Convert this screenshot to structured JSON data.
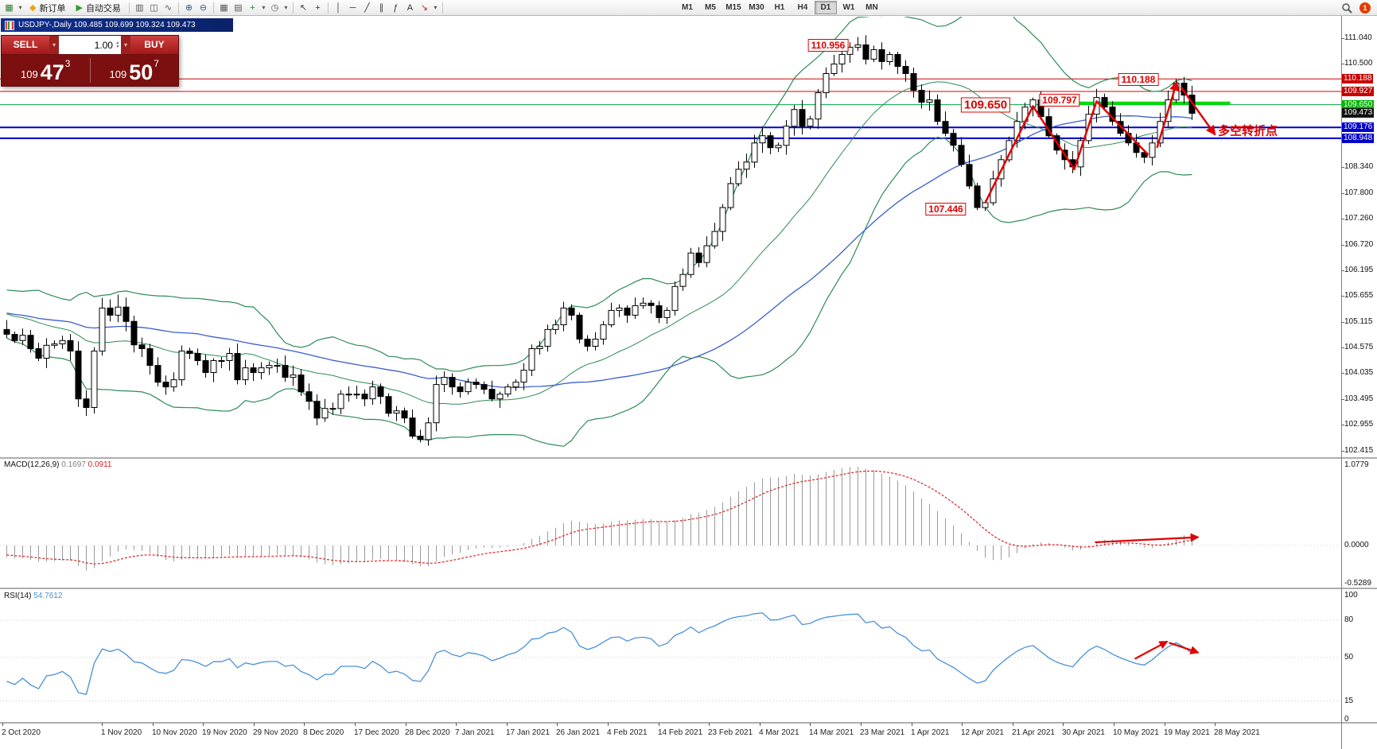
{
  "toolbar": {
    "items": [
      {
        "type": "icon",
        "name": "new-chart",
        "glyph": "▦",
        "color": "#2e7d32"
      },
      {
        "type": "caret"
      },
      {
        "type": "button",
        "name": "new-order",
        "glyph": "◆",
        "glyph_color": "#e6a817",
        "label": "新订单"
      },
      {
        "type": "button",
        "name": "autotrade",
        "glyph": "▶",
        "glyph_color": "#2e9e2e",
        "label": "自动交易"
      },
      {
        "type": "sep"
      },
      {
        "type": "icon",
        "name": "bar-chart",
        "glyph": "▥",
        "color": "#555555"
      },
      {
        "type": "icon",
        "name": "candlestick-chart",
        "glyph": "◫",
        "color": "#555555"
      },
      {
        "type": "icon",
        "name": "line-chart",
        "glyph": "∿",
        "color": "#555555"
      },
      {
        "type": "sep"
      },
      {
        "type": "icon",
        "name": "zoom-in",
        "glyph": "⊕",
        "color": "#335599"
      },
      {
        "type": "icon",
        "name": "zoom-out",
        "glyph": "⊖",
        "color": "#335599"
      },
      {
        "type": "sep"
      },
      {
        "type": "icon",
        "name": "tile-windows",
        "glyph": "▦",
        "color": "#555555"
      },
      {
        "type": "icon",
        "name": "arrange-windows",
        "glyph": "▤",
        "color": "#555555"
      },
      {
        "type": "icon",
        "name": "indicators-add",
        "glyph": "+",
        "color": "#1a8a1a"
      },
      {
        "type": "caret"
      },
      {
        "type": "icon",
        "name": "timeframes-clock",
        "glyph": "◷",
        "color": "#555555"
      },
      {
        "type": "caret"
      },
      {
        "type": "sep"
      },
      {
        "type": "icon",
        "name": "cursor",
        "glyph": "↖",
        "color": "#333333"
      },
      {
        "type": "icon",
        "name": "crosshair",
        "glyph": "+",
        "color": "#333333"
      },
      {
        "type": "sep"
      },
      {
        "type": "icon",
        "name": "vertical-line-tool",
        "glyph": "│",
        "color": "#333333"
      },
      {
        "type": "icon",
        "name": "horizontal-line-tool",
        "glyph": "─",
        "color": "#333333"
      },
      {
        "type": "icon",
        "name": "trendline-tool",
        "glyph": "╱",
        "color": "#333333"
      },
      {
        "type": "icon",
        "name": "channel-tool",
        "glyph": "∥",
        "color": "#333333"
      },
      {
        "type": "icon",
        "name": "fibonacci-tool",
        "glyph": "ƒ",
        "color": "#333333"
      },
      {
        "type": "icon",
        "name": "text-tool",
        "glyph": "A",
        "color": "#333333"
      },
      {
        "type": "icon",
        "name": "arrow-objects-tool",
        "glyph": "↘",
        "color": "#bb2222"
      },
      {
        "type": "caret"
      },
      {
        "type": "sep"
      }
    ],
    "timeframes": [
      "M1",
      "M5",
      "M15",
      "M30",
      "H1",
      "H4",
      "D1",
      "W1",
      "MN"
    ],
    "active_timeframe": "D1",
    "notification_count": "1"
  },
  "chart_window": {
    "title": "USDJPY-,Daily 109.485 109.699 109.324 109.473"
  },
  "trade_panel": {
    "sell_label": "SELL",
    "buy_label": "BUY",
    "volume": "1.00",
    "sell_price": {
      "big_prefix": "109",
      "big": "47",
      "sup": "3"
    },
    "buy_price": {
      "big_prefix": "109",
      "big": "50",
      "sup": "7"
    }
  },
  "price_axis": {
    "labels": [
      {
        "text": "111.040"
      },
      {
        "text": "110.500"
      },
      {
        "text": "110.188",
        "type": "red"
      },
      {
        "text": "109.927",
        "type": "red"
      },
      {
        "text": "109.650",
        "type": "green"
      },
      {
        "text": "109.473",
        "type": "current"
      },
      {
        "text": "109.176",
        "type": "blue"
      },
      {
        "text": "108.948",
        "type": "blue"
      },
      {
        "text": "108.340"
      },
      {
        "text": "107.800"
      },
      {
        "text": "107.260"
      },
      {
        "text": "106.720"
      },
      {
        "text": "106.195"
      },
      {
        "text": "105.655"
      },
      {
        "text": "105.115"
      },
      {
        "text": "104.575"
      },
      {
        "text": "104.035"
      },
      {
        "text": "103.495"
      },
      {
        "text": "102.955"
      },
      {
        "text": "102.415"
      }
    ]
  },
  "date_axis": [
    "2 Oct 2020",
    "1 Nov 2020",
    "10 Nov 2020",
    "19 Nov 2020",
    "29 Nov 2020",
    "8 Dec 2020",
    "17 Dec 2020",
    "28 Dec 2020",
    "7 Jan 2021",
    "17 Jan 2021",
    "26 Jan 2021",
    "4 Feb 2021",
    "14 Feb 2021",
    "23 Feb 2021",
    "4 Mar 2021",
    "14 Mar 2021",
    "23 Mar 2021",
    "1 Apr 2021",
    "12 Apr 2021",
    "21 Apr 2021",
    "30 Apr 2021",
    "10 May 2021",
    "19 May 2021",
    "28 May 2021"
  ],
  "indicators": {
    "macd": {
      "label": "MACD(12,26,9)",
      "value_main": "0.1697",
      "value_signal": "0.0911",
      "axis_labels": [
        "1.0779",
        "0.0000",
        "-0.5289"
      ]
    },
    "rsi": {
      "label": "RSI(14)",
      "value": "54.7612",
      "axis_labels": [
        "100",
        "80",
        "50",
        "15",
        "0"
      ]
    }
  },
  "annotations": {
    "price_labels": [
      {
        "text": "110.956",
        "bar": 103.2,
        "price": 110.89,
        "size": 12
      },
      {
        "text": "109.650",
        "bar": 123.0,
        "price": 109.64,
        "size": 15
      },
      {
        "text": "109.797",
        "bar": 132.3,
        "price": 109.74,
        "size": 12
      },
      {
        "text": "110.188",
        "bar": 142.2,
        "price": 110.18,
        "size": 12
      },
      {
        "text": "107.446",
        "bar": 118.0,
        "price": 107.47,
        "size": 12
      }
    ],
    "turning_point": {
      "text": "多空转折点",
      "bar": 152.2,
      "price": 109.12
    }
  },
  "colors": {
    "bollinger": "#2e8b57",
    "ma_blue": "#3a5fcd",
    "rsi_line": "#4a90d9",
    "macd_hist": "#9a9a9a",
    "macd_signal": "#dd2222",
    "annotation_red": "#e00000",
    "candle_up": "#ffffff",
    "candle_down": "#000000",
    "support_green": "#00dc00"
  },
  "chart_data": {
    "type": "candlestick",
    "symbol": "USDJPY-",
    "period": "Daily",
    "ohlc": {
      "open": "109.485",
      "high": "109.699",
      "low": "109.324",
      "close": "109.473"
    },
    "ylim": [
      102.415,
      111.04
    ],
    "first_open": 104.95,
    "prehistory": [
      105.7,
      105.6,
      105.45,
      105.4,
      105.55,
      105.65,
      105.5,
      105.4,
      105.3,
      105.45,
      105.55,
      105.4,
      105.25,
      105.15,
      105.05,
      104.95,
      105.1,
      105.0,
      104.9,
      104.95
    ],
    "closes": [
      104.85,
      104.72,
      104.83,
      104.55,
      104.35,
      104.62,
      104.65,
      104.72,
      104.5,
      103.5,
      103.32,
      104.5,
      105.4,
      105.25,
      105.42,
      105.12,
      104.63,
      104.55,
      104.2,
      103.85,
      103.75,
      103.9,
      104.5,
      104.45,
      104.3,
      104.05,
      104.3,
      104.3,
      104.45,
      103.9,
      104.15,
      104.05,
      104.15,
      104.2,
      104.2,
      103.95,
      104.0,
      103.65,
      103.45,
      103.1,
      103.3,
      103.3,
      103.6,
      103.6,
      103.6,
      103.5,
      103.75,
      103.55,
      103.2,
      103.25,
      103.1,
      102.72,
      102.65,
      103.0,
      103.8,
      103.95,
      103.75,
      103.65,
      103.85,
      103.8,
      103.7,
      103.5,
      103.6,
      103.75,
      103.85,
      104.1,
      104.55,
      104.6,
      104.95,
      105.05,
      105.4,
      105.25,
      104.75,
      104.6,
      104.75,
      105.05,
      105.35,
      105.4,
      105.25,
      105.45,
      105.5,
      105.45,
      105.2,
      105.35,
      105.85,
      106.1,
      106.55,
      106.35,
      106.7,
      107.0,
      107.5,
      108.0,
      108.3,
      108.45,
      108.85,
      109.0,
      108.75,
      108.8,
      109.2,
      109.55,
      109.2,
      109.35,
      109.9,
      110.3,
      110.5,
      110.7,
      110.85,
      110.9,
      110.6,
      110.8,
      110.55,
      110.7,
      110.45,
      110.3,
      109.95,
      109.7,
      109.75,
      109.3,
      109.05,
      108.8,
      108.4,
      107.95,
      107.5,
      107.6,
      108.1,
      108.5,
      108.9,
      109.3,
      109.6,
      109.75,
      109.4,
      109.0,
      108.7,
      108.5,
      108.35,
      108.9,
      109.45,
      109.8,
      109.6,
      109.3,
      109.05,
      108.85,
      108.65,
      108.55,
      108.85,
      109.3,
      109.75,
      110.1,
      109.85,
      109.47
    ],
    "overrides": {
      "high": {
        "14": 105.68,
        "106": 110.956,
        "129": 109.797,
        "147": 110.188
      },
      "low": {
        "52": 102.59,
        "122": 107.446
      }
    },
    "hlines": [
      {
        "price": 110.188,
        "color": "#d40000",
        "width": 1
      },
      {
        "price": 109.927,
        "color": "#d40000",
        "width": 1
      },
      {
        "price": 109.65,
        "color": "#00aa44",
        "width": 1
      },
      {
        "price": 109.176,
        "color": "#0000d0",
        "width": 2
      },
      {
        "price": 108.948,
        "color": "#0000d0",
        "width": 2
      }
    ],
    "support_segment": {
      "bar1": 134.5,
      "bar2": 153.8,
      "price": 109.68,
      "width": 4
    },
    "bollinger": {
      "period": 20,
      "deviation": 2
    },
    "ma_blue_period": 45,
    "macd_params": [
      12,
      26,
      9
    ],
    "rsi_period": 14,
    "drawings": {
      "price_zigzag": [
        [
          123.0,
          107.6
        ],
        [
          129,
          109.62
        ],
        [
          134.2,
          108.3
        ],
        [
          137.0,
          109.72
        ],
        [
          143.5,
          108.6
        ]
      ],
      "price_arrow_up": [
        [
          144.6,
          108.75
        ],
        [
          147.1,
          110.13
        ]
      ],
      "price_arrow_down": [
        [
          147.6,
          110.02
        ],
        [
          151.9,
          109.02
        ]
      ],
      "macd_arrow": [
        [
          136.8,
          0.05
        ],
        [
          149.8,
          0.13
        ]
      ],
      "rsi_arrow_up": [
        [
          141.8,
          49
        ],
        [
          145.9,
          63
        ]
      ],
      "rsi_arrow_down": [
        [
          146.1,
          62
        ],
        [
          149.8,
          54
        ]
      ]
    }
  }
}
